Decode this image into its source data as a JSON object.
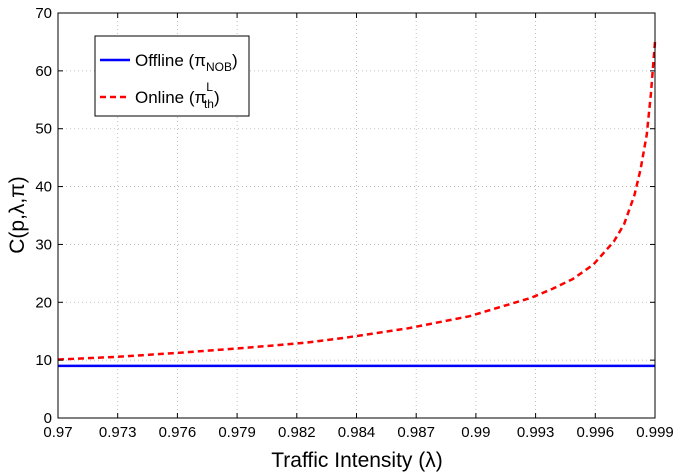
{
  "chart_data": {
    "type": "line",
    "xlabel": "Traffic Intensity (λ)",
    "ylabel": "C(p,λ,π)",
    "xlim": [
      0.97,
      0.999
    ],
    "ylim": [
      0,
      70
    ],
    "grid": true,
    "legend_position": "top-left",
    "x_ticks": [
      "0.97",
      "0.973",
      "0.976",
      "0.979",
      "0.982",
      "0.984",
      "0.987",
      "0.99",
      "0.993",
      "0.996",
      "0.999"
    ],
    "y_ticks": [
      "0",
      "10",
      "20",
      "30",
      "40",
      "50",
      "60",
      "70"
    ],
    "series": [
      {
        "name": "Offline (π",
        "name_sub": "NOB",
        "name_tail": ")",
        "color": "#0000ff",
        "style": "solid",
        "x": [
          0.97,
          0.999
        ],
        "y": [
          9,
          9
        ]
      },
      {
        "name": "Online (π",
        "name_sub": "th",
        "name_sup": "L",
        "name_tail": ")",
        "color": "#ff0000",
        "style": "dashed",
        "x": [
          0.97,
          0.973,
          0.976,
          0.979,
          0.982,
          0.984,
          0.987,
          0.99,
          0.993,
          0.994,
          0.995,
          0.996,
          0.997,
          0.9975,
          0.998,
          0.9983,
          0.9986,
          0.9988,
          0.999
        ],
        "y": [
          10.1,
          10.6,
          11.3,
          12.1,
          13.0,
          13.9,
          15.5,
          17.6,
          20.8,
          22.3,
          24.0,
          26.5,
          30.5,
          33.5,
          38.5,
          43.0,
          49.0,
          56.0,
          65.0
        ]
      }
    ]
  }
}
